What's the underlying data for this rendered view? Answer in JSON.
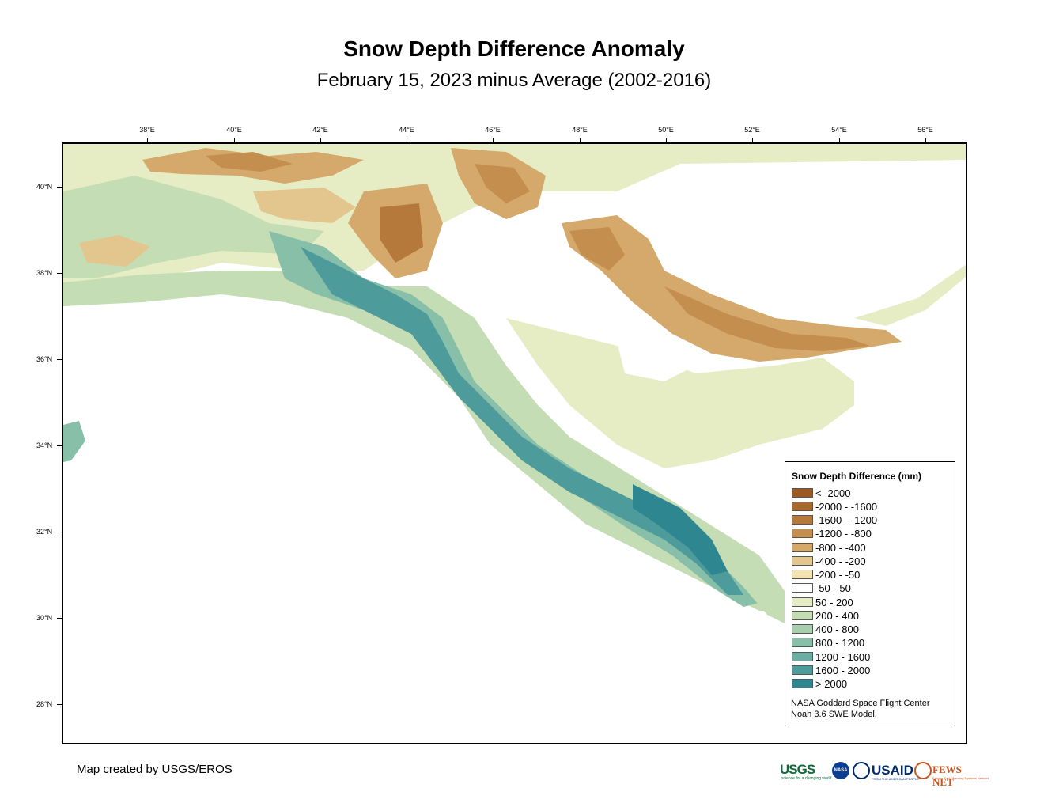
{
  "title": "Snow Depth Difference Anomaly",
  "subtitle": "February 15, 2023 minus Average (2002-2016)",
  "axes": {
    "longitudes": [
      "38°E",
      "40°E",
      "42°E",
      "44°E",
      "46°E",
      "48°E",
      "50°E",
      "52°E",
      "54°E",
      "56°E"
    ],
    "latitudes": [
      "40°N",
      "38°N",
      "36°N",
      "34°N",
      "32°N",
      "30°N",
      "28°N"
    ]
  },
  "legend": {
    "title": "Snow Depth Difference (mm)",
    "items": [
      {
        "label": "< -2000",
        "color": "#9c5a23"
      },
      {
        "label": "-2000 - -1600",
        "color": "#a8692d"
      },
      {
        "label": "-1600 - -1200",
        "color": "#b5793b"
      },
      {
        "label": "-1200 - -800",
        "color": "#c38e4e"
      },
      {
        "label": "-800 - -400",
        "color": "#d4a96b"
      },
      {
        "label": "-400 - -200",
        "color": "#e3c68d"
      },
      {
        "label": "-200 - -50",
        "color": "#f2e3b1"
      },
      {
        "label": "-50 - 50",
        "color": "#ffffff"
      },
      {
        "label": "50 - 200",
        "color": "#e6edc4"
      },
      {
        "label": "200 - 400",
        "color": "#c5ddb4"
      },
      {
        "label": "400 - 800",
        "color": "#a7cfae"
      },
      {
        "label": "800 - 1200",
        "color": "#88bfa8"
      },
      {
        "label": "1200 - 1600",
        "color": "#6aaea3"
      },
      {
        "label": "1600 - 2000",
        "color": "#4d9b9a"
      },
      {
        "label": "> 2000",
        "color": "#2e8790"
      }
    ],
    "source_line1": "NASA Goddard Space Flight Center",
    "source_line2": "Noah 3.6 SWE Model."
  },
  "credit": "Map created by USGS/EROS",
  "logos": {
    "usgs": "USGS",
    "usgs_tagline": "science for a changing world",
    "nasa": "NASA",
    "usaid": "USAID",
    "usaid_tagline": "FROM THE AMERICAN PEOPLE",
    "fews": "FEWS NET",
    "fews_tagline": "Famine Early Warning Systems Network"
  }
}
